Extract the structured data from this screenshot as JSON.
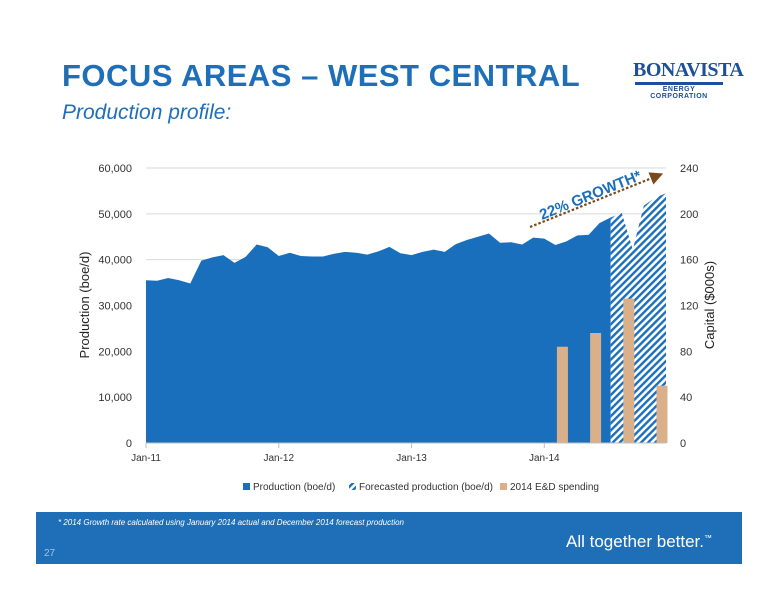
{
  "title": "FOCUS AREAS – WEST CENTRAL",
  "subtitle": "Production profile:",
  "logo": {
    "name": "BONAVISTA",
    "sub": "ENERGY CORPORATION"
  },
  "footer": {
    "footnote": "* 2014 Growth rate calculated using January 2014 actual and December 2014 forecast production",
    "tagline": "All together better.",
    "tagline_mark": "™",
    "page_number": "27"
  },
  "colors": {
    "production": "#1a6fbc",
    "forecast": "#1a6fbc",
    "spending": "#d9b08a",
    "annotation": "#1a6fbc",
    "arrow": "#7a4a1a"
  },
  "chart_data": {
    "type": "area",
    "ylabel": "Production (boe/d)",
    "y2label": "Capital ($000s)",
    "ylim": [
      0,
      60000
    ],
    "y2lim": [
      0,
      240
    ],
    "yticks": [
      "0",
      "10,000",
      "20,000",
      "30,000",
      "40,000",
      "50,000",
      "60,000"
    ],
    "y2ticks": [
      "0",
      "40",
      "80",
      "120",
      "160",
      "200",
      "240"
    ],
    "x_range": [
      0,
      47
    ],
    "xticks": [
      {
        "label": "Jan-11",
        "x": 0
      },
      {
        "label": "Jan-12",
        "x": 12
      },
      {
        "label": "Jan-13",
        "x": 24
      },
      {
        "label": "Jan-14",
        "x": 36
      }
    ],
    "series": [
      {
        "name": "Production (boe/d)",
        "kind": "area",
        "x": [
          0,
          1,
          2,
          3,
          4,
          5,
          6,
          7,
          8,
          9,
          10,
          11,
          12,
          13,
          14,
          15,
          16,
          17,
          18,
          19,
          20,
          21,
          22,
          23,
          24,
          25,
          26,
          27,
          28,
          29,
          30,
          31,
          32,
          33,
          34,
          35,
          36,
          37,
          38,
          39,
          40,
          41,
          42
        ],
        "values": [
          35500,
          35400,
          36000,
          35500,
          34800,
          39800,
          40500,
          41000,
          39300,
          40600,
          43300,
          42700,
          40800,
          41500,
          40800,
          40700,
          40700,
          41300,
          41700,
          41500,
          41100,
          41800,
          42800,
          41400,
          41000,
          41700,
          42200,
          41700,
          43400,
          44300,
          45000,
          45700,
          43700,
          43800,
          43300,
          44800,
          44600,
          43200,
          44000,
          45300,
          45400,
          48000,
          49200
        ]
      },
      {
        "name": "Forecasted production (boe/d)",
        "kind": "area_hatched",
        "x": [
          42,
          43,
          44,
          45,
          46,
          47
        ],
        "values": [
          49200,
          50200,
          42200,
          51800,
          53500,
          54500
        ]
      },
      {
        "name": "2014 E&D spending",
        "kind": "bar",
        "axis": "y2",
        "x": [
          38.0,
          41.0,
          44.0,
          47.0
        ],
        "values": [
          84,
          96,
          126,
          50
        ]
      }
    ],
    "annotation": {
      "text": "22% GROWTH*"
    },
    "legend_position": "bottom"
  }
}
